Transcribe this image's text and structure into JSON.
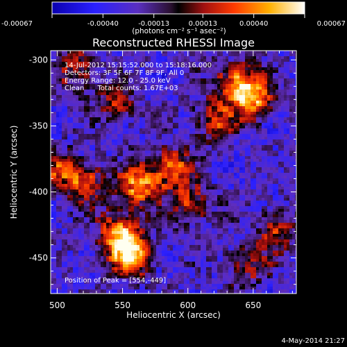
{
  "colorbar": {
    "tick_labels": [
      "-0.00067",
      "-0.00040",
      "-0.00013",
      "0.00013",
      "0.00040",
      "0.00067"
    ],
    "units_label": "(photons cm⁻² s⁻¹ asec⁻²)",
    "range": [
      -0.00067,
      0.00067
    ]
  },
  "chart_data": {
    "type": "heatmap",
    "title": "Reconstructed RHESSI Image",
    "xlabel": "Heliocentric X (arcsec)",
    "ylabel": "Heliocentric Y (arcsec)",
    "xlim": [
      495,
      683
    ],
    "ylim": [
      -477,
      -293
    ],
    "x_ticks": [
      500,
      550,
      600,
      650
    ],
    "y_ticks": [
      -300,
      -350,
      -400,
      -450
    ],
    "grid": false,
    "peak": [
      554,
      -449
    ],
    "annotations": [
      "14-Jul-2012 15:15:52.000 to 15:18:16.000",
      "Detectors: 3F 5F 6F 7F 8F 9F, All 0",
      "Energy Range: 12.0 - 25.0 keV",
      "Clean      Total counts: 1.67E+03",
      "Position of Peak = [554,-449]"
    ],
    "bright_regions": [
      {
        "x": 556,
        "y": -448,
        "intensity": 1.0
      },
      {
        "x": 548,
        "y": -430,
        "intensity": 0.8
      },
      {
        "x": 520,
        "y": -392,
        "intensity": 0.7
      },
      {
        "x": 562,
        "y": -395,
        "intensity": 0.85
      },
      {
        "x": 588,
        "y": -382,
        "intensity": 0.75
      },
      {
        "x": 603,
        "y": -410,
        "intensity": 0.6
      },
      {
        "x": 638,
        "y": -318,
        "intensity": 0.85
      },
      {
        "x": 652,
        "y": -330,
        "intensity": 0.75
      },
      {
        "x": 620,
        "y": -345,
        "intensity": 0.6
      },
      {
        "x": 515,
        "y": -307,
        "intensity": 0.55
      },
      {
        "x": 545,
        "y": -333,
        "intensity": 0.5
      },
      {
        "x": 668,
        "y": -428,
        "intensity": 0.55
      },
      {
        "x": 645,
        "y": -455,
        "intensity": 0.5
      },
      {
        "x": 500,
        "y": -383,
        "intensity": 0.45
      }
    ]
  },
  "footer_date": "4-May-2014 21:27"
}
